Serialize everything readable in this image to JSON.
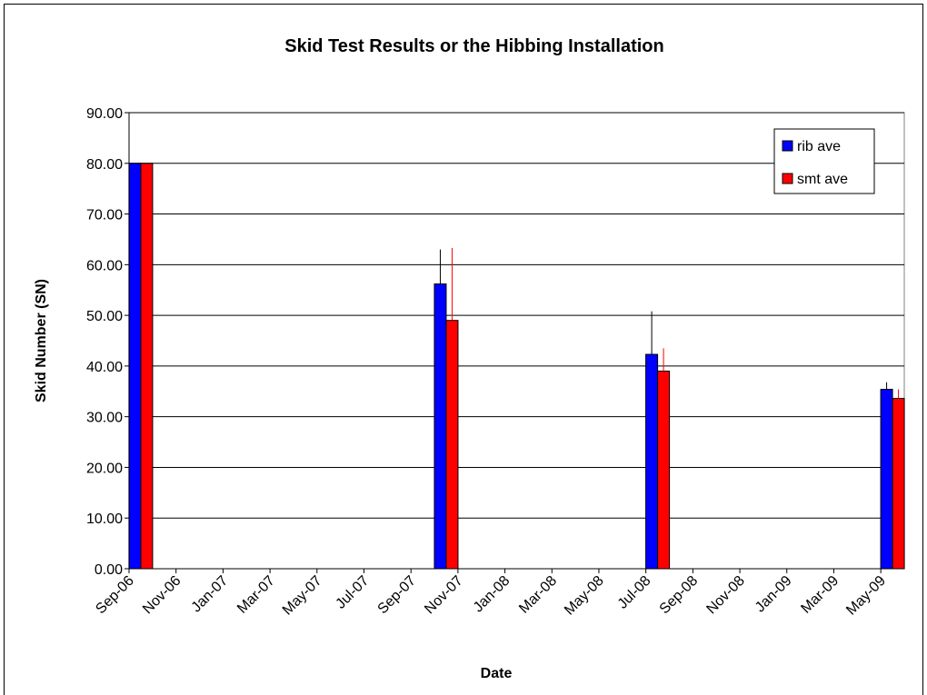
{
  "chart_data": {
    "type": "bar",
    "title": "Skid Test Results or the Hibbing Installation",
    "x_label": "Date",
    "y_label": "Skid Number (SN)",
    "x": [
      "Sep-06",
      "Oct-07",
      "Jul-08",
      "May-09"
    ],
    "xticks": [
      "Sep-06",
      "Nov-06",
      "Jan-07",
      "Mar-07",
      "May-07",
      "Jul-07",
      "Sep-07",
      "Nov-07",
      "Jan-08",
      "Mar-08",
      "May-08",
      "Jul-08",
      "Sep-08",
      "Nov-08",
      "Jan-09",
      "Mar-09",
      "May-09"
    ],
    "ylim": [
      0,
      90
    ],
    "yticks": [
      {
        "value": 0,
        "label": "0.00"
      },
      {
        "value": 10,
        "label": "10.00"
      },
      {
        "value": 20,
        "label": "20.00"
      },
      {
        "value": 30,
        "label": "30.00"
      },
      {
        "value": 40,
        "label": "40.00"
      },
      {
        "value": 50,
        "label": "50.00"
      },
      {
        "value": 60,
        "label": "60.00"
      },
      {
        "value": 70,
        "label": "70.00"
      },
      {
        "value": 80,
        "label": "80.00"
      },
      {
        "value": 90,
        "label": "90.00"
      }
    ],
    "grid": true,
    "legend": "upper right",
    "series": [
      {
        "name": "rib ave",
        "color": "#0000ff",
        "error_color": "#000000",
        "values": [
          80,
          56.2,
          42.3,
          35.4
        ],
        "errors": [
          null,
          6.8,
          8.5,
          1.4
        ]
      },
      {
        "name": "smt ave",
        "color": "#ff0000",
        "error_color": "#ff0000",
        "values": [
          80,
          49,
          39,
          33.6
        ],
        "errors": [
          null,
          14.3,
          4.5,
          1.8
        ]
      }
    ]
  }
}
